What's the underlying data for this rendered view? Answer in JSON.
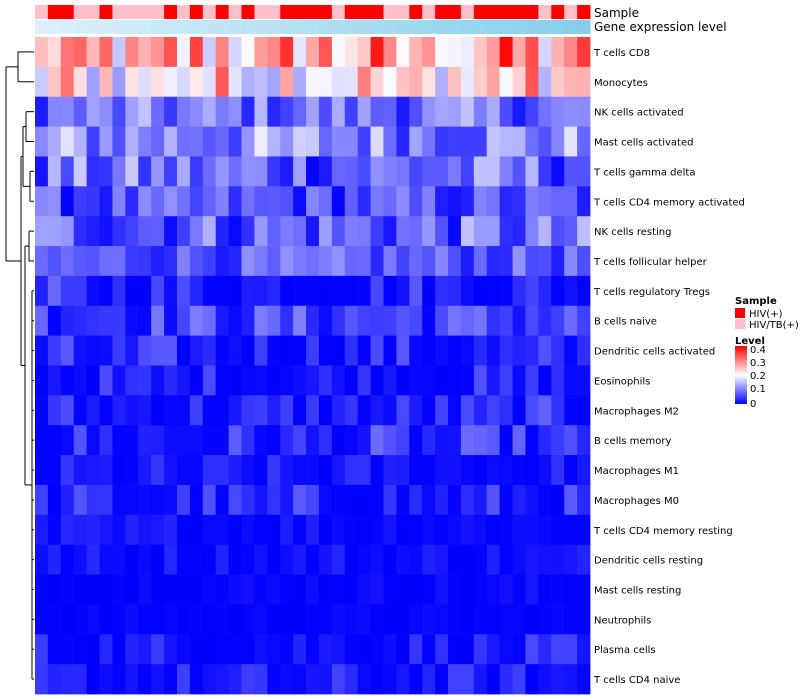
{
  "chart_data": {
    "type": "heatmap",
    "title": "",
    "annotation_tracks": [
      {
        "name": "Sample",
        "kind": "categorical"
      },
      {
        "name": "Gene expression level",
        "kind": "continuous"
      }
    ],
    "rows": [
      "T cells CD8",
      "Monocytes",
      "NK cells activated",
      "Mast cells activated",
      "T cells gamma delta",
      "T cells CD4 memory activated",
      "NK cells resting",
      "T cells follicular helper",
      "T cells regulatory  Tregs",
      "B cells naive",
      "Dendritic cells activated",
      "Eosinophils",
      "Macrophages M2",
      "B cells memory",
      "Macrophages M1",
      "Macrophages M0",
      "T cells CD4 memory resting",
      "Dendritic cells resting",
      "Mast cells resting",
      "Neutrophils",
      "Plasma cells",
      "T cells CD4 naive"
    ],
    "n_columns": 43,
    "sample_groups": [
      1,
      0,
      0,
      1,
      1,
      0,
      1,
      1,
      1,
      1,
      0,
      1,
      0,
      1,
      0,
      1,
      0,
      1,
      1,
      0,
      0,
      0,
      0,
      1,
      0,
      0,
      0,
      1,
      1,
      0,
      1,
      0,
      0,
      1,
      0,
      0,
      0,
      0,
      0,
      1,
      0,
      1,
      0
    ],
    "legend_sample": {
      "title": "Sample",
      "entries": [
        {
          "label": "HIV(+)",
          "color": "#ff0000"
        },
        {
          "label": "HIV/TB(+)",
          "color": "#ffc0cb"
        }
      ]
    },
    "legend_level": {
      "title": "Level",
      "ticks": [
        "0.4",
        "0.3",
        "0.2",
        "0.1",
        "0"
      ],
      "range": [
        0,
        0.42
      ]
    },
    "colors": {
      "low": "#0000ff",
      "mid": "#ffffff",
      "high": "#ff0000",
      "expression_track": "#87ceeb"
    },
    "row_profiles": {
      "T cells CD8": [
        0.16,
        0.42
      ],
      "Monocytes": [
        0.14,
        0.36
      ],
      "NK cells activated": [
        0.02,
        0.16
      ],
      "Mast cells activated": [
        0.03,
        0.2
      ],
      "T cells gamma delta": [
        0.0,
        0.17
      ],
      "T cells CD4 memory activated": [
        0.0,
        0.12
      ],
      "NK cells resting": [
        0.0,
        0.16
      ],
      "T cells follicular helper": [
        0.02,
        0.12
      ],
      "T cells regulatory  Tregs": [
        0.0,
        0.09
      ],
      "B cells naive": [
        0.0,
        0.11
      ],
      "Dendritic cells activated": [
        0.0,
        0.08
      ],
      "Eosinophils": [
        0.0,
        0.07
      ],
      "Macrophages M2": [
        0.0,
        0.08
      ],
      "B cells memory": [
        0.0,
        0.09
      ],
      "Macrophages M1": [
        0.0,
        0.05
      ],
      "Macrophages M0": [
        0.0,
        0.08
      ],
      "T cells CD4 memory resting": [
        0.0,
        0.04
      ],
      "Dendritic cells resting": [
        0.0,
        0.04
      ],
      "Mast cells resting": [
        0.0,
        0.02
      ],
      "Neutrophils": [
        0.0,
        0.01
      ],
      "Plasma cells": [
        0.0,
        0.06
      ],
      "T cells CD4 naive": [
        0.0,
        0.06
      ]
    }
  }
}
